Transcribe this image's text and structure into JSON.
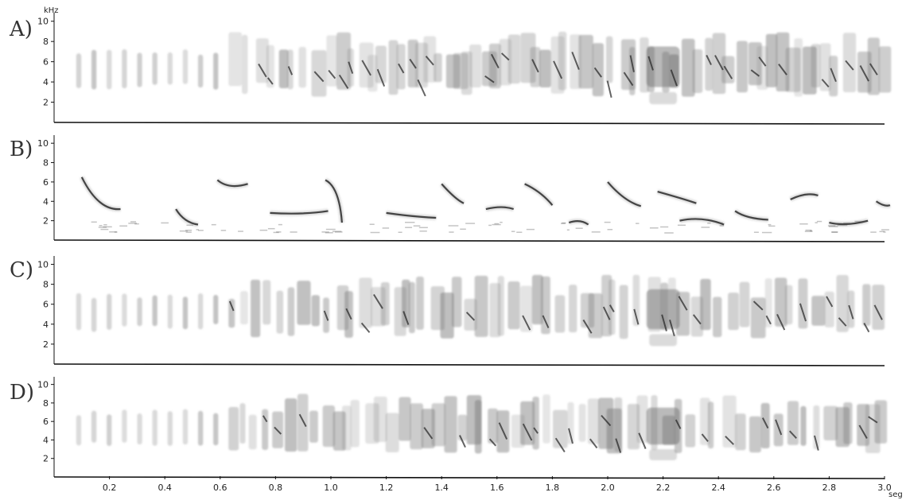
{
  "figure": {
    "y_unit": "kHz",
    "y_ticks": [
      "2",
      "4",
      "6",
      "8",
      "10"
    ],
    "x_unit": "seg",
    "x_ticks": [
      "0.2",
      "0.4",
      "0.6",
      "0.8",
      "1.0",
      "1.2",
      "1.4",
      "1.6",
      "1.8",
      "2.0",
      "2.2",
      "2.4",
      "2.6",
      "2.8",
      "3.0"
    ],
    "x_range": [
      0,
      3.0
    ],
    "y_range": [
      0,
      11
    ],
    "panels": [
      {
        "label": "A)",
        "style": "dense",
        "seed": 11
      },
      {
        "label": "B)",
        "style": "sparse",
        "seed": 23
      },
      {
        "label": "C)",
        "style": "dense",
        "seed": 37
      },
      {
        "label": "D)",
        "style": "dense",
        "seed": 53
      }
    ],
    "colors": {
      "ink": "#222222",
      "axis": "#111111"
    }
  }
}
